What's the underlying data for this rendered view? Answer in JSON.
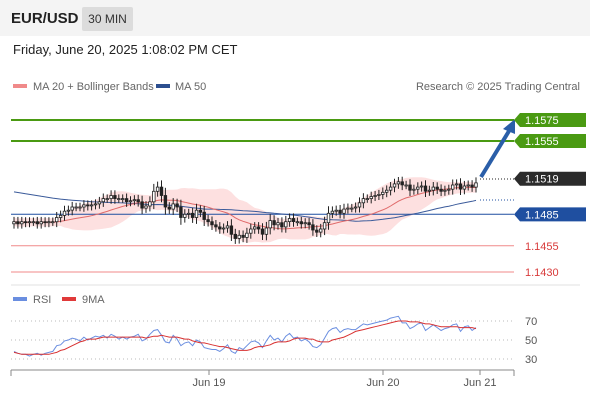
{
  "header": {
    "pair": "EUR/USD",
    "timeframe": "30 MIN"
  },
  "datetime": "Friday, June 20, 2025 1:08:02 PM CET",
  "legend": {
    "ma20": "MA 20 + Bollinger Bands",
    "ma50": "MA 50",
    "credit": "Research © 2025 Trading Central"
  },
  "rsi_legend": {
    "rsi": "RSI",
    "ma9": "9MA"
  },
  "colors": {
    "ma20": "#e05050",
    "ma50": "#2c4f8f",
    "band_fill": "#fde0e0",
    "green": "#4a9a12",
    "red_level": "#f08a8a",
    "blue_level": "#1f4fa0",
    "candle": "#222222",
    "rsi": "#6a8ee0",
    "rsi_ma": "#e03a3a"
  },
  "chart_data": {
    "type": "candlestick",
    "y_range": [
      1.4276,
      1.1603
    ],
    "current_price": "1.1519",
    "levels": [
      {
        "value": 1.1575,
        "label": "1.1575",
        "kind": "resistance"
      },
      {
        "value": 1.1555,
        "label": "1.1555",
        "kind": "resistance"
      },
      {
        "value": 1.1485,
        "label": "1.1485",
        "kind": "pivot"
      },
      {
        "value": 1.1455,
        "label": "1.1455",
        "kind": "support"
      },
      {
        "value": 1.143,
        "label": "1.1430",
        "kind": "support"
      }
    ],
    "x_labels": [
      "Jun 19",
      "Jun 20",
      "Jun 21"
    ],
    "forecast_arrow": {
      "from": 1.1519,
      "to": 1.1575,
      "direction": "up"
    },
    "closes": [
      1.1478,
      1.1476,
      1.1478,
      1.1477,
      1.1478,
      1.1478,
      1.1476,
      1.1478,
      1.1477,
      1.1478,
      1.1478,
      1.1482,
      1.1484,
      1.1488,
      1.1489,
      1.1492,
      1.1492,
      1.1492,
      1.1494,
      1.1493,
      1.1494,
      1.1495,
      1.1497,
      1.15,
      1.15,
      1.1503,
      1.15,
      1.15,
      1.15,
      1.1497,
      1.1498,
      1.1499,
      1.1497,
      1.1491,
      1.1493,
      1.1497,
      1.1507,
      1.1511,
      1.1503,
      1.1492,
      1.149,
      1.1495,
      1.1492,
      1.1482,
      1.1485,
      1.1486,
      1.1482,
      1.1489,
      1.1487,
      1.148,
      1.1478,
      1.1475,
      1.1473,
      1.1471,
      1.1472,
      1.1474,
      1.1466,
      1.1462,
      1.1465,
      1.1463,
      1.1467,
      1.1471,
      1.1473,
      1.1471,
      1.1466,
      1.1472,
      1.1479,
      1.1475,
      1.1477,
      1.1473,
      1.1478,
      1.1481,
      1.1478,
      1.1478,
      1.1476,
      1.1477,
      1.1475,
      1.147,
      1.1468,
      1.1471,
      1.1477,
      1.1486,
      1.1488,
      1.1489,
      1.1486,
      1.149,
      1.1491,
      1.1491,
      1.1492,
      1.1496,
      1.15,
      1.15,
      1.1502,
      1.1503,
      1.1504,
      1.1506,
      1.1508,
      1.1511,
      1.1514,
      1.1516,
      1.1513,
      1.1513,
      1.1508,
      1.1509,
      1.1511,
      1.1512,
      1.1507,
      1.1508,
      1.1511,
      1.1509,
      1.1507,
      1.1508,
      1.1509,
      1.1513,
      1.1514,
      1.1509,
      1.1512,
      1.1513,
      1.1511,
      1.1515
    ],
    "rsi": {
      "ticks": [
        70,
        50,
        30
      ],
      "values": [
        38,
        36,
        35,
        35,
        33,
        35,
        36,
        34,
        36,
        37,
        38,
        44,
        45,
        49,
        50,
        52,
        51,
        49,
        53,
        50,
        52,
        54,
        53,
        55,
        52,
        56,
        54,
        51,
        53,
        51,
        53,
        54,
        56,
        49,
        51,
        56,
        60,
        61,
        55,
        48,
        47,
        55,
        51,
        44,
        47,
        48,
        44,
        50,
        48,
        42,
        41,
        40,
        40,
        38,
        41,
        45,
        38,
        36,
        42,
        40,
        44,
        48,
        49,
        47,
        42,
        49,
        55,
        50,
        52,
        48,
        54,
        57,
        52,
        53,
        49,
        51,
        48,
        43,
        42,
        45,
        52,
        59,
        62,
        63,
        58,
        61,
        62,
        61,
        61,
        64,
        67,
        66,
        67,
        68,
        69,
        70,
        71,
        73,
        74,
        75,
        68,
        68,
        62,
        64,
        67,
        68,
        60,
        63,
        66,
        63,
        60,
        62,
        63,
        66,
        67,
        59,
        64,
        65,
        60,
        63
      ],
      "ma9": [
        37,
        36,
        35,
        35,
        35,
        35,
        35,
        35,
        35,
        35,
        36,
        37,
        39,
        40,
        42,
        44,
        46,
        48,
        49,
        51,
        51,
        51,
        52,
        53,
        53,
        53,
        53,
        53,
        53,
        53,
        53,
        53,
        53,
        53,
        52,
        53,
        54,
        54,
        55,
        54,
        53,
        53,
        53,
        52,
        51,
        51,
        49,
        48,
        47,
        47,
        46,
        45,
        44,
        43,
        43,
        42,
        41,
        40,
        39,
        39,
        39,
        40,
        42,
        43,
        43,
        44,
        45,
        47,
        48,
        48,
        48,
        49,
        51,
        52,
        52,
        52,
        51,
        51,
        49,
        48,
        48,
        48,
        50,
        51,
        52,
        53,
        55,
        57,
        59,
        60,
        61,
        62,
        63,
        64,
        65,
        66,
        67,
        68,
        69,
        70,
        70,
        70,
        69,
        69,
        69,
        68,
        67,
        67,
        66,
        65,
        64,
        64,
        64,
        64,
        64,
        63,
        63,
        63,
        63,
        62
      ]
    }
  }
}
